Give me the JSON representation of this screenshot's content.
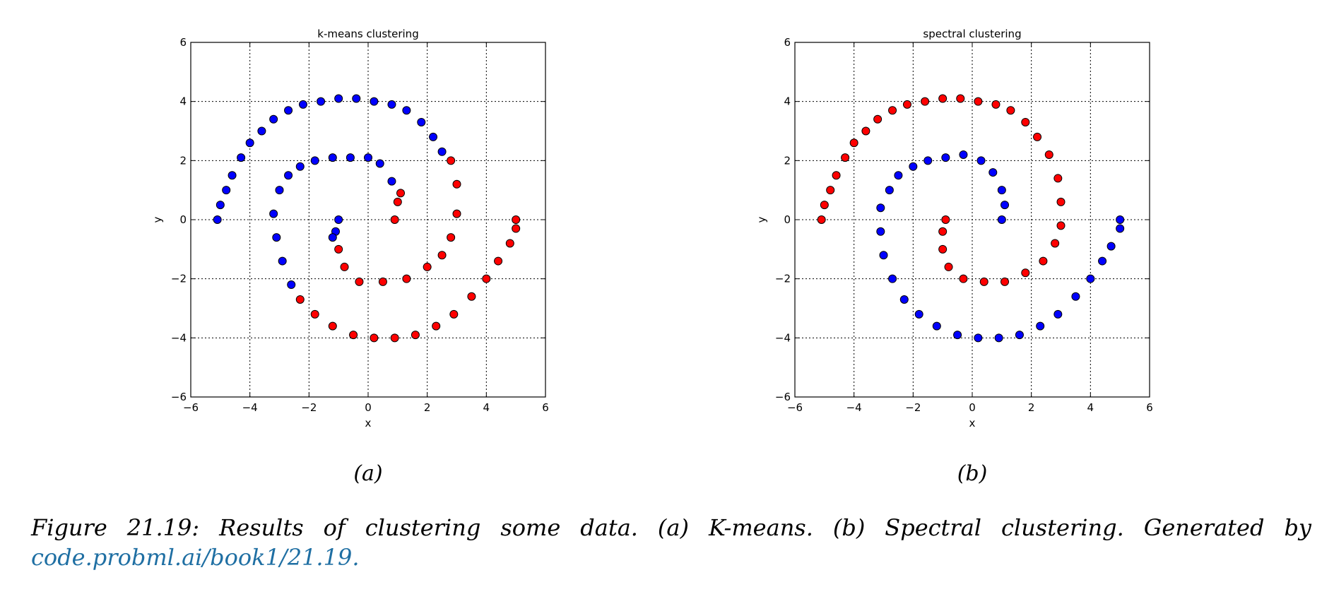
{
  "chart_data": [
    {
      "type": "scatter",
      "title": "k-means clustering",
      "xlabel": "x",
      "ylabel": "y",
      "xlim": [
        -6,
        6
      ],
      "ylim": [
        -6,
        6
      ],
      "xticks": [
        -6,
        -4,
        -2,
        0,
        2,
        4,
        6
      ],
      "yticks": [
        -6,
        -4,
        -2,
        0,
        2,
        4,
        6
      ],
      "xtick_labels": [
        "−6",
        "−4",
        "−2",
        "0",
        "2",
        "4",
        "6"
      ],
      "ytick_labels": [
        "−6",
        "−4",
        "−2",
        "0",
        "2",
        "4",
        "6"
      ],
      "grid": true,
      "series": [
        {
          "color": "#0000ff",
          "points": [
            [
              -5.1,
              0.0
            ],
            [
              -5.0,
              0.5
            ],
            [
              -4.8,
              1.0
            ],
            [
              -4.6,
              1.5
            ],
            [
              -4.3,
              2.1
            ],
            [
              -4.0,
              2.6
            ],
            [
              -3.6,
              3.0
            ],
            [
              -3.2,
              3.4
            ],
            [
              -2.7,
              3.7
            ],
            [
              -2.2,
              3.9
            ],
            [
              -1.6,
              4.0
            ],
            [
              -1.0,
              4.1
            ],
            [
              -0.4,
              4.1
            ],
            [
              0.2,
              4.0
            ],
            [
              0.8,
              3.9
            ],
            [
              1.3,
              3.7
            ],
            [
              1.8,
              3.3
            ],
            [
              2.2,
              2.8
            ],
            [
              2.5,
              2.3
            ],
            [
              -3.1,
              -0.6
            ],
            [
              -3.2,
              0.2
            ],
            [
              -3.0,
              1.0
            ],
            [
              -2.7,
              1.5
            ],
            [
              -2.3,
              1.8
            ],
            [
              -1.8,
              2.0
            ],
            [
              -1.2,
              2.1
            ],
            [
              -0.6,
              2.1
            ],
            [
              0.0,
              2.1
            ],
            [
              0.4,
              1.9
            ],
            [
              0.8,
              1.3
            ],
            [
              -2.9,
              -1.4
            ],
            [
              -2.6,
              -2.2
            ],
            [
              -1.0,
              0.0
            ],
            [
              -1.1,
              -0.4
            ],
            [
              -1.2,
              -0.6
            ]
          ]
        },
        {
          "color": "#ff0000",
          "points": [
            [
              2.8,
              2.0
            ],
            [
              3.0,
              1.2
            ],
            [
              3.0,
              0.2
            ],
            [
              2.8,
              -0.6
            ],
            [
              2.5,
              -1.2
            ],
            [
              2.0,
              -1.6
            ],
            [
              1.3,
              -2.0
            ],
            [
              0.5,
              -2.1
            ],
            [
              -0.3,
              -2.1
            ],
            [
              -0.8,
              -1.6
            ],
            [
              -1.0,
              -1.0
            ],
            [
              0.9,
              0.0
            ],
            [
              1.0,
              0.6
            ],
            [
              1.1,
              0.9
            ],
            [
              -2.3,
              -2.7
            ],
            [
              -1.8,
              -3.2
            ],
            [
              -1.2,
              -3.6
            ],
            [
              -0.5,
              -3.9
            ],
            [
              0.2,
              -4.0
            ],
            [
              0.9,
              -4.0
            ],
            [
              1.6,
              -3.9
            ],
            [
              2.3,
              -3.6
            ],
            [
              2.9,
              -3.2
            ],
            [
              3.5,
              -2.6
            ],
            [
              4.0,
              -2.0
            ],
            [
              4.4,
              -1.4
            ],
            [
              4.8,
              -0.8
            ],
            [
              5.0,
              -0.3
            ],
            [
              5.0,
              0.0
            ]
          ]
        }
      ]
    },
    {
      "type": "scatter",
      "title": "spectral clustering",
      "xlabel": "x",
      "ylabel": "y",
      "xlim": [
        -6,
        6
      ],
      "ylim": [
        -6,
        6
      ],
      "xticks": [
        -6,
        -4,
        -2,
        0,
        2,
        4,
        6
      ],
      "yticks": [
        -6,
        -4,
        -2,
        0,
        2,
        4,
        6
      ],
      "xtick_labels": [
        "−6",
        "−4",
        "−2",
        "0",
        "2",
        "4",
        "6"
      ],
      "ytick_labels": [
        "−6",
        "−4",
        "−2",
        "0",
        "2",
        "4",
        "6"
      ],
      "grid": true,
      "series": [
        {
          "color": "#ff0000",
          "points": [
            [
              -5.1,
              0.0
            ],
            [
              -5.0,
              0.5
            ],
            [
              -4.8,
              1.0
            ],
            [
              -4.6,
              1.5
            ],
            [
              -4.3,
              2.1
            ],
            [
              -4.0,
              2.6
            ],
            [
              -3.6,
              3.0
            ],
            [
              -3.2,
              3.4
            ],
            [
              -2.7,
              3.7
            ],
            [
              -2.2,
              3.9
            ],
            [
              -1.6,
              4.0
            ],
            [
              -1.0,
              4.1
            ],
            [
              -0.4,
              4.1
            ],
            [
              0.2,
              4.0
            ],
            [
              0.8,
              3.9
            ],
            [
              1.3,
              3.7
            ],
            [
              1.8,
              3.3
            ],
            [
              2.2,
              2.8
            ],
            [
              2.6,
              2.2
            ],
            [
              2.9,
              1.4
            ],
            [
              3.0,
              0.6
            ],
            [
              3.0,
              -0.2
            ],
            [
              2.8,
              -0.8
            ],
            [
              2.4,
              -1.4
            ],
            [
              1.8,
              -1.8
            ],
            [
              1.1,
              -2.1
            ],
            [
              0.4,
              -2.1
            ],
            [
              -0.3,
              -2.0
            ],
            [
              -0.8,
              -1.6
            ],
            [
              -1.0,
              -1.0
            ],
            [
              -1.0,
              -0.4
            ],
            [
              -0.9,
              0.0
            ]
          ]
        },
        {
          "color": "#0000ff",
          "points": [
            [
              1.0,
              0.0
            ],
            [
              1.1,
              0.5
            ],
            [
              1.0,
              1.0
            ],
            [
              0.7,
              1.6
            ],
            [
              0.3,
              2.0
            ],
            [
              -0.3,
              2.2
            ],
            [
              -0.9,
              2.1
            ],
            [
              -1.5,
              2.0
            ],
            [
              -2.0,
              1.8
            ],
            [
              -2.5,
              1.5
            ],
            [
              -2.8,
              1.0
            ],
            [
              -3.1,
              0.4
            ],
            [
              -3.1,
              -0.4
            ],
            [
              -3.0,
              -1.2
            ],
            [
              -2.7,
              -2.0
            ],
            [
              -2.3,
              -2.7
            ],
            [
              -1.8,
              -3.2
            ],
            [
              -1.2,
              -3.6
            ],
            [
              -0.5,
              -3.9
            ],
            [
              0.2,
              -4.0
            ],
            [
              0.9,
              -4.0
            ],
            [
              1.6,
              -3.9
            ],
            [
              2.3,
              -3.6
            ],
            [
              2.9,
              -3.2
            ],
            [
              3.5,
              -2.6
            ],
            [
              4.0,
              -2.0
            ],
            [
              4.4,
              -1.4
            ],
            [
              4.7,
              -0.9
            ],
            [
              5.0,
              -0.3
            ],
            [
              5.0,
              0.0
            ]
          ]
        }
      ]
    }
  ],
  "subfigure_labels": [
    "(a)",
    "(b)"
  ],
  "caption": {
    "text": "Figure 21.19: Results of clustering some data. (a) K-means. (b) Spectral clustering. Generated by",
    "link": "code.probml.ai/book1/21.19",
    "trailing": "."
  }
}
